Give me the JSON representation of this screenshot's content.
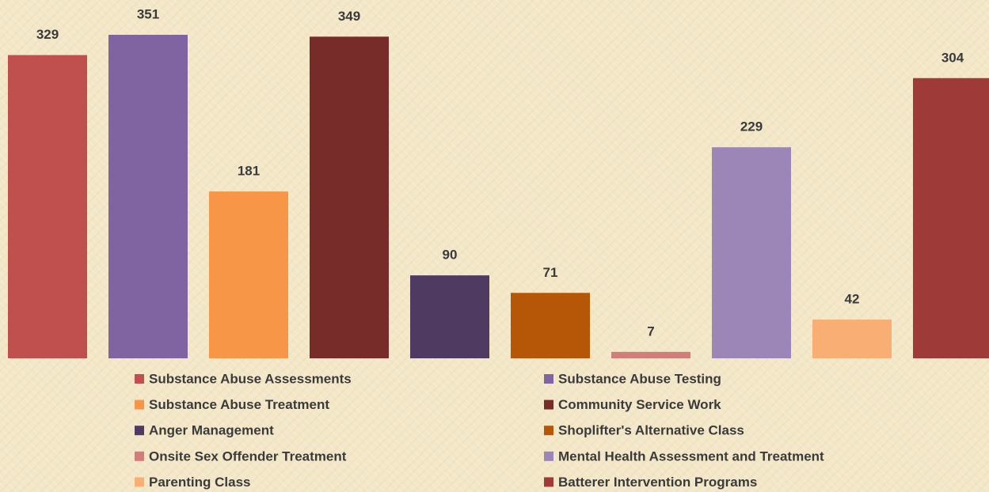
{
  "chart_data": {
    "type": "bar",
    "series": [
      {
        "name": "Substance Abuse Assessments",
        "color": "#c0504d",
        "values": [
          329
        ]
      },
      {
        "name": "Substance Abuse Testing",
        "color": "#8064a2",
        "values": [
          351
        ]
      },
      {
        "name": "Substance Abuse Treatment",
        "color": "#f79646",
        "values": [
          181
        ]
      },
      {
        "name": "Community Service Work",
        "color": "#772c2a",
        "values": [
          349
        ]
      },
      {
        "name": "Anger Management",
        "color": "#4f3b62",
        "values": [
          90
        ]
      },
      {
        "name": "Shoplifter's Alternative Class",
        "color": "#b65708",
        "values": [
          71
        ]
      },
      {
        "name": "Onsite Sex Offender Treatment",
        "color": "#d07d7b",
        "values": [
          7
        ]
      },
      {
        "name": "Mental Health Assessment and Treatment",
        "color": "#9c85b7",
        "values": [
          229
        ]
      },
      {
        "name": "Parenting Class",
        "color": "#f9ae74",
        "values": [
          42
        ]
      },
      {
        "name": "Batterer Intervention Programs",
        "color": "#9e3a38",
        "values": [
          304
        ]
      }
    ],
    "legend": "bottom"
  }
}
